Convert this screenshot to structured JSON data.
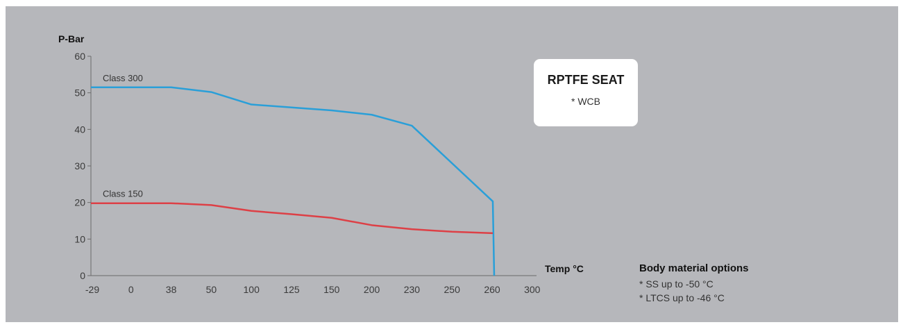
{
  "chart_data": {
    "type": "line",
    "ylabel": "P-Bar",
    "xlabel": "Temp °C",
    "categories": [
      "-29",
      "0",
      "38",
      "50",
      "100",
      "125",
      "150",
      "200",
      "230",
      "250",
      "260",
      "300"
    ],
    "ylim": [
      0,
      60
    ],
    "yticks": [
      "0",
      "10",
      "20",
      "30",
      "40",
      "50",
      "60"
    ],
    "grid": false,
    "series": [
      {
        "name": "Class 300",
        "color": "#2a9fd8",
        "points": [
          {
            "x": "-29",
            "y": 51.5
          },
          {
            "x": "38",
            "y": 51.5
          },
          {
            "x": "50",
            "y": 50.2
          },
          {
            "x": "100",
            "y": 46.8
          },
          {
            "x": "125",
            "y": 46.0
          },
          {
            "x": "150",
            "y": 45.2
          },
          {
            "x": "200",
            "y": 44.0
          },
          {
            "x": "230",
            "y": 41.0
          },
          {
            "x": "260",
            "y": 20.3
          },
          {
            "x": "260",
            "y": 0
          }
        ]
      },
      {
        "name": "Class 150",
        "color": "#dd4046",
        "points": [
          {
            "x": "-29",
            "y": 19.8
          },
          {
            "x": "38",
            "y": 19.8
          },
          {
            "x": "50",
            "y": 19.3
          },
          {
            "x": "100",
            "y": 17.7
          },
          {
            "x": "125",
            "y": 16.8
          },
          {
            "x": "150",
            "y": 15.8
          },
          {
            "x": "200",
            "y": 13.8
          },
          {
            "x": "230",
            "y": 12.7
          },
          {
            "x": "250",
            "y": 12.0
          },
          {
            "x": "260",
            "y": 11.6
          }
        ]
      }
    ]
  },
  "info_box": {
    "title": "RPTFE SEAT",
    "subtitle": "* WCB"
  },
  "notes": {
    "title": "Body material options",
    "lines": [
      "* SS up to -50 °C",
      "* LTCS up to -46 °C"
    ]
  },
  "colors": {
    "background": "#b6b7bb",
    "axis": "#6b6b6b"
  }
}
